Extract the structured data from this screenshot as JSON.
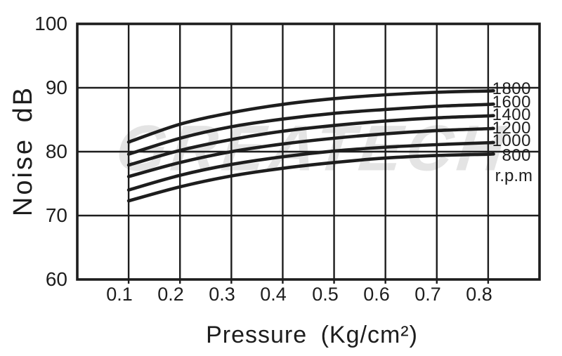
{
  "watermark": {
    "text": "GREATECH"
  },
  "colors": {
    "ink": "#1d1d1d",
    "watermark_gray": "#e4e4e4",
    "background": "#ffffff"
  },
  "chart_data": {
    "type": "line",
    "title": "",
    "xlabel": "Pressure (Kg/cm²)",
    "ylabel": "Noise dB",
    "x": [
      0.1,
      0.2,
      0.3,
      0.4,
      0.5,
      0.6,
      0.7,
      0.8
    ],
    "x_tick_labels": [
      "0.1",
      "0.2",
      "0.3",
      "0.4",
      "0.5",
      "0.6",
      "0.7",
      "0.8"
    ],
    "y_ticks": [
      60,
      70,
      80,
      90,
      100
    ],
    "y_tick_labels_top_to_bottom": [
      "100",
      "90",
      "80",
      "70",
      "60"
    ],
    "xlim": [
      0,
      0.9
    ],
    "ylim": [
      60,
      100
    ],
    "grid": true,
    "legend_position": "right-inside",
    "legend_title": "r.p.m",
    "series": [
      {
        "name": "1800",
        "values": [
          81.5,
          84.3,
          86.1,
          87.4,
          88.3,
          88.9,
          89.3,
          89.5
        ]
      },
      {
        "name": "1600",
        "values": [
          79.6,
          82.1,
          83.9,
          85.1,
          86.0,
          86.6,
          87.1,
          87.4
        ]
      },
      {
        "name": "1400",
        "values": [
          77.9,
          80.2,
          81.9,
          83.2,
          84.1,
          84.8,
          85.3,
          85.6
        ]
      },
      {
        "name": "1200",
        "values": [
          76.1,
          78.3,
          80.0,
          81.2,
          82.1,
          82.8,
          83.3,
          83.6
        ]
      },
      {
        "name": "1000",
        "values": [
          74.0,
          76.3,
          78.0,
          79.2,
          80.1,
          80.7,
          81.1,
          81.4
        ]
      },
      {
        "name": "800",
        "values": [
          72.3,
          74.5,
          76.2,
          77.4,
          78.3,
          79.0,
          79.4,
          79.6
        ]
      }
    ]
  }
}
